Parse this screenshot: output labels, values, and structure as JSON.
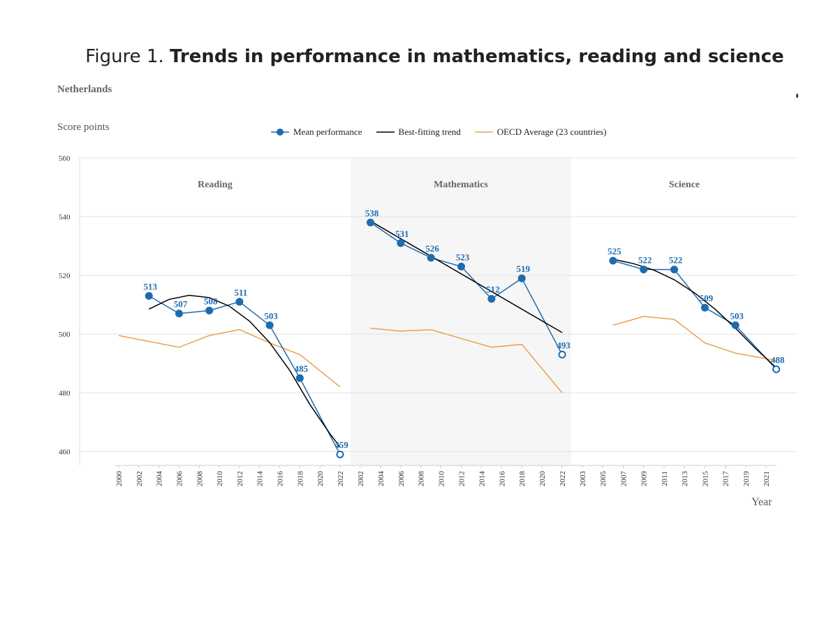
{
  "title": {
    "prefix": "Figure 1. ",
    "bold": "Trends in performance in mathematics, reading and science"
  },
  "country": "Netherlands",
  "y_unit": "Score points",
  "x_axis_label": "Year",
  "legend": {
    "mean": "Mean performance",
    "trend": "Best-fitting trend",
    "oecd": "OECD Average (23 countries)"
  },
  "colors": {
    "mean": "#1f6bb0",
    "trend": "#000000",
    "oecd": "#e8a14f",
    "shade": "#f6f6f6"
  },
  "chart_data": {
    "type": "line",
    "ylim": [
      460,
      560
    ],
    "yticks": [
      460,
      480,
      500,
      520,
      540,
      560
    ],
    "panels": [
      {
        "name": "Reading",
        "shaded": false,
        "x_ticks": [
          "2000",
          "2002",
          "2004",
          "2006",
          "2008",
          "2010",
          "2012",
          "2014",
          "2016",
          "2018",
          "2020",
          "2022"
        ],
        "x_range": [
          2000,
          2022
        ],
        "mean": [
          {
            "year": 2003,
            "value": 513,
            "label": "513"
          },
          {
            "year": 2006,
            "value": 507,
            "label": "507"
          },
          {
            "year": 2009,
            "value": 508,
            "label": "508"
          },
          {
            "year": 2012,
            "value": 511,
            "label": "511"
          },
          {
            "year": 2015,
            "value": 503,
            "label": "503"
          },
          {
            "year": 2018,
            "value": 485,
            "label": "485"
          },
          {
            "year": 2022,
            "value": 459,
            "label": "459",
            "hollow": true
          }
        ],
        "trend": [
          [
            2003,
            508.5
          ],
          [
            2005,
            511.8
          ],
          [
            2007,
            513.2
          ],
          [
            2009,
            512.4
          ],
          [
            2011,
            509.5
          ],
          [
            2013,
            504.4
          ],
          [
            2015,
            497.1
          ],
          [
            2017,
            487.6
          ],
          [
            2019,
            476.0
          ],
          [
            2021,
            466.0
          ],
          [
            2022,
            461.5
          ]
        ],
        "oecd": [
          [
            2000,
            499.5
          ],
          [
            2003,
            497.5
          ],
          [
            2006,
            495.5
          ],
          [
            2009,
            499.5
          ],
          [
            2012,
            501.5
          ],
          [
            2015,
            497.0
          ],
          [
            2018,
            493.0
          ],
          [
            2022,
            482.0
          ]
        ]
      },
      {
        "name": "Mathematics",
        "shaded": true,
        "x_ticks": [
          "2002",
          "2004",
          "2006",
          "2008",
          "2010",
          "2012",
          "2014",
          "2016",
          "2018",
          "2020",
          "2022"
        ],
        "x_range": [
          2002,
          2022
        ],
        "mean": [
          {
            "year": 2003,
            "value": 538,
            "label": "538"
          },
          {
            "year": 2006,
            "value": 531,
            "label": "531"
          },
          {
            "year": 2009,
            "value": 526,
            "label": "526"
          },
          {
            "year": 2012,
            "value": 523,
            "label": "523"
          },
          {
            "year": 2015,
            "value": 512,
            "label": "512"
          },
          {
            "year": 2018,
            "value": 519,
            "label": "519"
          },
          {
            "year": 2022,
            "value": 493,
            "label": "493",
            "hollow": true
          }
        ],
        "trend": [
          [
            2003,
            538.5
          ],
          [
            2022,
            500.5
          ]
        ],
        "oecd": [
          [
            2003,
            502.0
          ],
          [
            2006,
            501.0
          ],
          [
            2009,
            501.5
          ],
          [
            2012,
            498.5
          ],
          [
            2015,
            495.5
          ],
          [
            2018,
            496.5
          ],
          [
            2022,
            480.0
          ]
        ]
      },
      {
        "name": "Science",
        "shaded": false,
        "x_ticks": [
          "2003",
          "2005",
          "2007",
          "2009",
          "2011",
          "2013",
          "2015",
          "2017",
          "2019",
          "2021"
        ],
        "x_range": [
          2003,
          2021
        ],
        "mean": [
          {
            "year": 2006,
            "value": 525,
            "label": "525"
          },
          {
            "year": 2009,
            "value": 522,
            "label": "522"
          },
          {
            "year": 2012,
            "value": 522,
            "label": "522"
          },
          {
            "year": 2015,
            "value": 509,
            "label": "509"
          },
          {
            "year": 2018,
            "value": 503,
            "label": "503"
          },
          {
            "year": 2022,
            "value": 488,
            "label": "488",
            "hollow": true
          }
        ],
        "trend": [
          [
            2006,
            525.5
          ],
          [
            2008,
            524.0
          ],
          [
            2010,
            521.8
          ],
          [
            2012,
            518.5
          ],
          [
            2014,
            514.0
          ],
          [
            2016,
            508.5
          ],
          [
            2018,
            502.0
          ],
          [
            2020,
            495.0
          ],
          [
            2022,
            488.5
          ]
        ],
        "oecd": [
          [
            2006,
            503.0
          ],
          [
            2009,
            506.0
          ],
          [
            2012,
            505.0
          ],
          [
            2015,
            497.0
          ],
          [
            2018,
            493.5
          ],
          [
            2022,
            491.0
          ]
        ]
      }
    ]
  }
}
